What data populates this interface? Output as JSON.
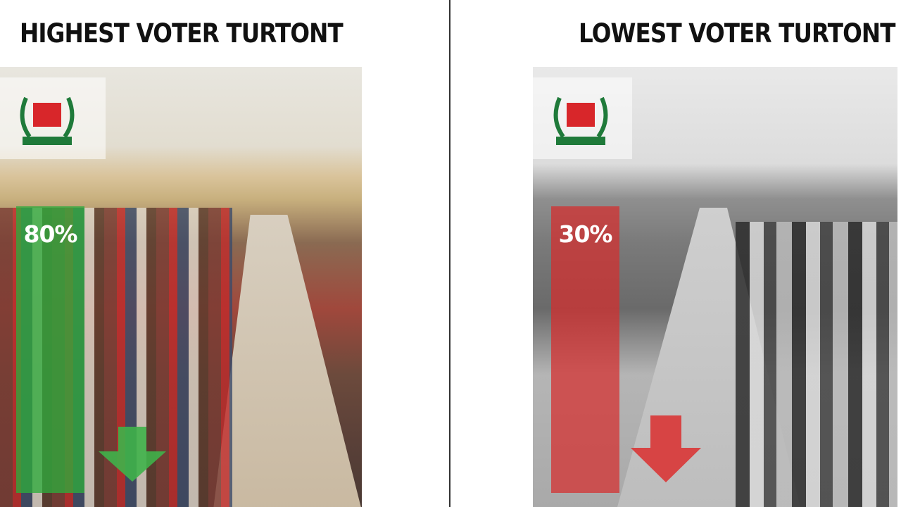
{
  "left": {
    "title": "HIGHEST VOTER TURTONT",
    "percent_label": "80%",
    "turnout_percent": 80,
    "bar_color": "#2eaa3c",
    "arrow_icon": "arrow-down",
    "arrow_color": "#3fb24a",
    "photo": "color crowd of voters in queue",
    "logo": "election commission ballot box emblem"
  },
  "right": {
    "title": "LOWEST VOTER TURTONT",
    "percent_label": "30%",
    "turnout_percent": 30,
    "bar_color": "#d62c2c",
    "arrow_icon": "arrow-down",
    "arrow_color": "#d93a3a",
    "photo": "grayscale sparse street with few voters",
    "logo": "election commission ballot box emblem"
  }
}
